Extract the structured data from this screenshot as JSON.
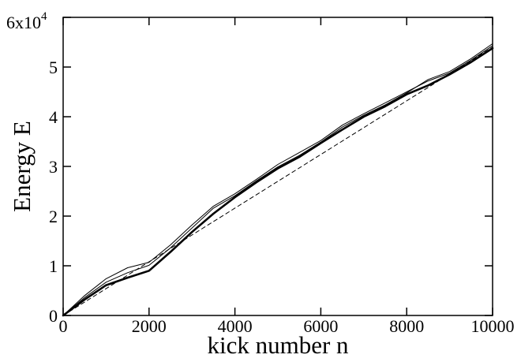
{
  "chart_data": {
    "type": "line",
    "xlabel": "kick number n",
    "ylabel": "Energy E",
    "xlim": [
      0,
      10000
    ],
    "ylim": [
      0,
      60000
    ],
    "x_ticks": [
      0,
      2000,
      4000,
      6000,
      8000,
      10000
    ],
    "x_tick_labels": [
      "0",
      "2000",
      "4000",
      "6000",
      "8000",
      "10000"
    ],
    "y_ticks": [
      0,
      10000,
      20000,
      30000,
      40000,
      50000,
      60000
    ],
    "y_tick_labels": [
      "0",
      "1",
      "2",
      "3",
      "4",
      "5",
      ""
    ],
    "y_top_label": {
      "base": "6x10",
      "exponent": "4"
    },
    "grid": false,
    "legend": "none",
    "series": [
      {
        "style": "thick",
        "x": [
          0,
          500,
          1000,
          1500,
          2000,
          2500,
          3000,
          3500,
          4000,
          4500,
          5000,
          5500,
          6000,
          6500,
          7000,
          7500,
          8000,
          8500,
          9000,
          9500,
          10000
        ],
        "y": [
          0,
          3200,
          6100,
          7600,
          9000,
          12800,
          16800,
          20500,
          23800,
          26800,
          29600,
          31900,
          34700,
          37400,
          40000,
          42100,
          44500,
          46300,
          48500,
          51000,
          53800
        ]
      },
      {
        "style": "thin",
        "x": [
          0,
          500,
          1000,
          1500,
          2000,
          2500,
          3000,
          3500,
          4000,
          4500,
          5000,
          5500,
          6000,
          6500,
          7000,
          7500,
          8000,
          8500,
          9000,
          9500,
          10000
        ],
        "y": [
          0,
          4000,
          7400,
          9600,
          10700,
          14200,
          18200,
          22000,
          24500,
          27400,
          30400,
          32800,
          35200,
          38300,
          40600,
          42800,
          45000,
          47200,
          48800,
          51400,
          54300
        ]
      },
      {
        "style": "thin",
        "x": [
          0,
          500,
          1000,
          1500,
          2000,
          2500,
          3000,
          3500,
          4000,
          4500,
          5000,
          5500,
          6000,
          6500,
          7000,
          7500,
          8000,
          8500,
          9000,
          9500,
          10000
        ],
        "y": [
          0,
          3600,
          6700,
          8600,
          10100,
          13600,
          17600,
          21600,
          24100,
          27100,
          29900,
          32200,
          34900,
          37900,
          40300,
          42400,
          44800,
          47500,
          49100,
          51700,
          54700
        ]
      },
      {
        "style": "dashed",
        "x": [
          0,
          10000
        ],
        "y": [
          0,
          54000
        ]
      }
    ]
  }
}
